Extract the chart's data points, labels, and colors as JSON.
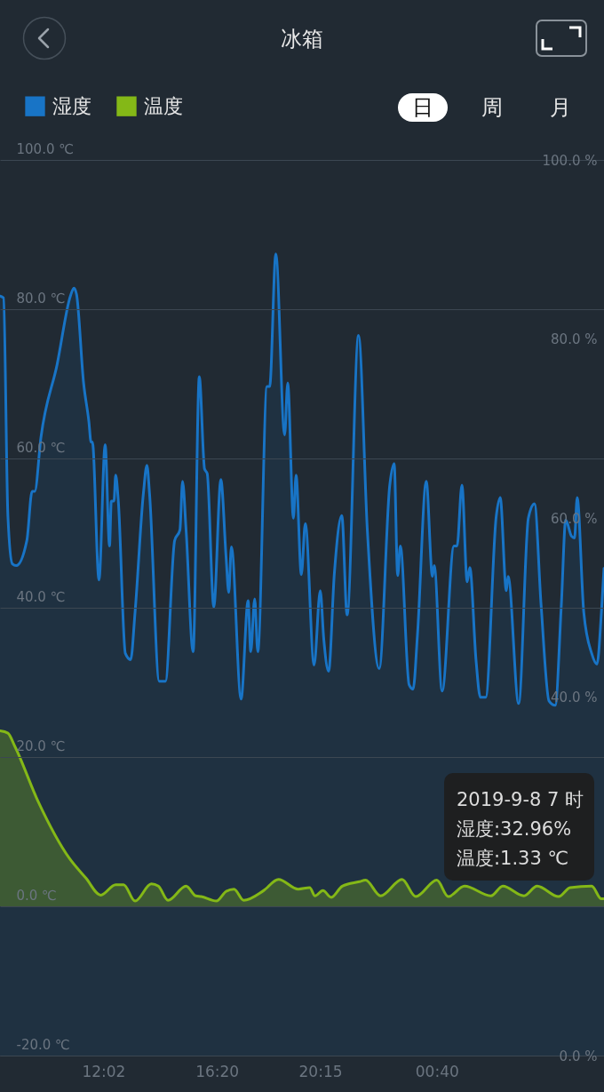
{
  "chart_data": {
    "type": "area",
    "title": "冰箱",
    "legend": "top left",
    "grid": "y",
    "xlim": [
      "2019-09-07T08:07",
      "2019-09-08T07:00"
    ],
    "xticks": [
      {
        "value": "2019-09-07T12:02",
        "label": "12:02"
      },
      {
        "value": "2019-09-07T16:20",
        "label": "16:20"
      },
      {
        "value": "2019-09-07T20:15",
        "label": "20:15"
      },
      {
        "value": "2019-09-08T00:40",
        "label": "00:40"
      }
    ],
    "ylim": [
      -20,
      100
    ],
    "yticks": [
      {
        "value": -20,
        "label": "-20.0 ℃"
      },
      {
        "value": 0,
        "label": "0.0 ℃"
      },
      {
        "value": 20,
        "label": "20.0 ℃"
      },
      {
        "value": 40,
        "label": "40.0 ℃"
      },
      {
        "value": 60,
        "label": "60.0 ℃"
      },
      {
        "value": 80,
        "label": "80.0 ℃"
      },
      {
        "value": 100,
        "label": "100.0 ℃"
      }
    ],
    "y2lim": [
      0,
      100
    ],
    "y2ticks": [
      {
        "value": 0,
        "label": "0.0 %"
      },
      {
        "value": 40,
        "label": "40.0 %"
      },
      {
        "value": 60,
        "label": "60.0 %"
      },
      {
        "value": 80,
        "label": "80.0 %"
      },
      {
        "value": 100,
        "label": "100.0 %"
      }
    ],
    "annotations": [
      "日",
      "周",
      "月",
      "2019-9-8 7 时",
      "湿度:32.96%",
      "温度:1.33 ℃"
    ],
    "series": [
      {
        "name": "湿度",
        "color": "#1874c6",
        "axis": "y2",
        "x": [
          "2019-09-07T08:07",
          "2019-09-07T08:15",
          "2019-09-07T08:25",
          "2019-09-07T08:35",
          "2019-09-07T08:44",
          "2019-09-07T09:08",
          "2019-09-07T09:20",
          "2019-09-07T09:26",
          "2019-09-07T09:40",
          "2019-09-07T10:17",
          "2019-09-07T10:47",
          "2019-09-07T10:55",
          "2019-09-07T11:01",
          "2019-09-07T11:17",
          "2019-09-07T11:29",
          "2019-09-07T11:34",
          "2019-09-07T11:37",
          "2019-09-07T11:52",
          "2019-09-07T12:06",
          "2019-09-07T12:16",
          "2019-09-07T12:20",
          "2019-09-07T12:26",
          "2019-09-07T12:30",
          "2019-09-07T12:36",
          "2019-09-07T12:52",
          "2019-09-07T13:04",
          "2019-09-07T13:14",
          "2019-09-07T13:33",
          "2019-09-07T13:41",
          "2019-09-07T13:47",
          "2019-09-07T14:09",
          "2019-09-07T14:23",
          "2019-09-07T14:44",
          "2019-09-07T14:56",
          "2019-09-07T15:02",
          "2019-09-07T15:10",
          "2019-09-07T15:26",
          "2019-09-07T15:40",
          "2019-09-07T15:52",
          "2019-09-07T15:58",
          "2019-09-07T16:13",
          "2019-09-07T16:29",
          "2019-09-07T16:41",
          "2019-09-07T16:47",
          "2019-09-07T16:53",
          "2019-09-07T17:15",
          "2019-09-07T17:31",
          "2019-09-07T17:37",
          "2019-09-07T17:46",
          "2019-09-07T17:53",
          "2019-09-07T18:14",
          "2019-09-07T18:20",
          "2019-09-07T18:34",
          "2019-09-07T18:54",
          "2019-09-07T19:01",
          "2019-09-07T19:14",
          "2019-09-07T19:20",
          "2019-09-07T19:32",
          "2019-09-07T19:41",
          "2019-09-07T20:01",
          "2019-09-07T20:15",
          "2019-09-07T20:23",
          "2019-09-07T20:34",
          "2019-09-07T20:47",
          "2019-09-07T21:04",
          "2019-09-07T21:16",
          "2019-09-07T21:42",
          "2019-09-07T22:02",
          "2019-09-07T22:29",
          "2019-09-07T22:53",
          "2019-09-07T23:03",
          "2019-09-07T23:11",
          "2019-09-07T23:17",
          "2019-09-07T23:37",
          "2019-09-07T23:46",
          "2019-09-07T23:56",
          "2019-09-08T00:16",
          "2019-09-08T00:30",
          "2019-09-08T00:34",
          "2019-09-08T00:52",
          "2019-09-08T01:19",
          "2019-09-08T01:26",
          "2019-09-08T01:37",
          "2019-09-08T01:49",
          "2019-09-08T01:55",
          "2019-09-08T02:09",
          "2019-09-08T02:19",
          "2019-09-08T02:31",
          "2019-09-08T02:55",
          "2019-09-08T03:04",
          "2019-09-08T03:18",
          "2019-09-08T03:22",
          "2019-09-08T03:46",
          "2019-09-08T04:08",
          "2019-09-08T04:22",
          "2019-09-08T04:37",
          "2019-09-08T04:55",
          "2019-09-08T05:09",
          "2019-09-08T05:23",
          "2019-09-08T05:33",
          "2019-09-08T05:46",
          "2019-09-08T05:53",
          "2019-09-08T05:59",
          "2019-09-08T06:14",
          "2019-09-08T06:32",
          "2019-09-08T06:44",
          "2019-09-08T06:54",
          "2019-09-08T07:00"
        ],
        "values": [
          84.8,
          84.6,
          60.2,
          54.9,
          54.7,
          57.5,
          63.0,
          63.0,
          69.0,
          77.2,
          84.8,
          85.7,
          85.0,
          75.1,
          70.8,
          68.5,
          68.5,
          53.1,
          68.2,
          56.9,
          61.9,
          61.9,
          64.8,
          61.9,
          44.9,
          44.2,
          49.5,
          62.8,
          65.9,
          62.7,
          41.8,
          41.8,
          57.5,
          58.7,
          64.1,
          58.7,
          45.1,
          75.8,
          65.5,
          65.0,
          50.1,
          64.3,
          55.6,
          51.7,
          56.8,
          39.8,
          50.8,
          45.1,
          51.0,
          45.1,
          74.7,
          74.7,
          89.5,
          69.3,
          75.1,
          60.0,
          64.8,
          53.7,
          59.4,
          43.6,
          51.9,
          46.5,
          42.9,
          53.8,
          60.3,
          49.2,
          80.4,
          58.7,
          43.2,
          63.7,
          66.1,
          53.6,
          56.9,
          41.4,
          40.9,
          47.0,
          64.1,
          53.5,
          54.7,
          40.7,
          56.9,
          56.9,
          63.7,
          52.9,
          54.5,
          44.2,
          40.0,
          40.0,
          60.2,
          62.3,
          51.9,
          53.5,
          39.3,
          60.0,
          61.6,
          50.3,
          39.6,
          39.1,
          50.3,
          59.8,
          58.0,
          57.8,
          62.3,
          49.5,
          44.9,
          43.7,
          49.4,
          54.4
        ]
      },
      {
        "name": "温度",
        "color": "#84b817",
        "x": [
          "2019-09-07T08:07",
          "2019-09-07T08:25",
          "2019-09-07T08:41",
          "2019-09-07T09:34",
          "2019-09-07T10:45",
          "2019-09-07T11:22",
          "2019-09-07T11:56",
          "2019-09-07T12:30",
          "2019-09-07T12:48",
          "2019-09-07T13:14",
          "2019-09-07T13:51",
          "2019-09-07T14:07",
          "2019-09-07T14:29",
          "2019-09-07T15:10",
          "2019-09-07T15:32",
          "2019-09-07T15:44",
          "2019-09-07T16:19",
          "2019-09-07T16:41",
          "2019-09-07T16:59",
          "2019-09-07T17:21",
          "2019-09-07T18:06",
          "2019-09-07T18:40",
          "2019-09-07T19:25",
          "2019-09-07T19:51",
          "2019-09-07T20:03",
          "2019-09-07T20:21",
          "2019-09-07T20:40",
          "2019-09-07T21:05",
          "2019-09-07T21:44",
          "2019-09-07T21:58",
          "2019-09-07T22:32",
          "2019-09-07T23:21",
          "2019-09-07T23:52",
          "2019-09-08T00:40",
          "2019-09-08T01:06",
          "2019-09-08T01:43",
          "2019-09-08T02:43",
          "2019-09-08T03:10",
          "2019-09-08T03:58",
          "2019-09-08T04:28",
          "2019-09-08T05:17",
          "2019-09-08T05:43",
          "2019-09-08T06:32",
          "2019-09-08T06:54",
          "2019-09-08T07:00"
        ],
        "values": [
          23.5,
          23.2,
          21.4,
          14.0,
          6.4,
          3.8,
          1.5,
          2.9,
          2.9,
          0.7,
          3.0,
          2.7,
          0.8,
          2.7,
          1.4,
          1.3,
          0.7,
          2.0,
          2.3,
          0.8,
          2.1,
          3.6,
          2.3,
          2.5,
          1.4,
          2.1,
          1.2,
          2.7,
          3.3,
          3.5,
          1.4,
          3.6,
          1.3,
          3.5,
          1.3,
          2.7,
          1.4,
          2.7,
          1.4,
          2.7,
          1.3,
          2.5,
          2.7,
          1.0,
          1.0
        ]
      }
    ]
  }
}
